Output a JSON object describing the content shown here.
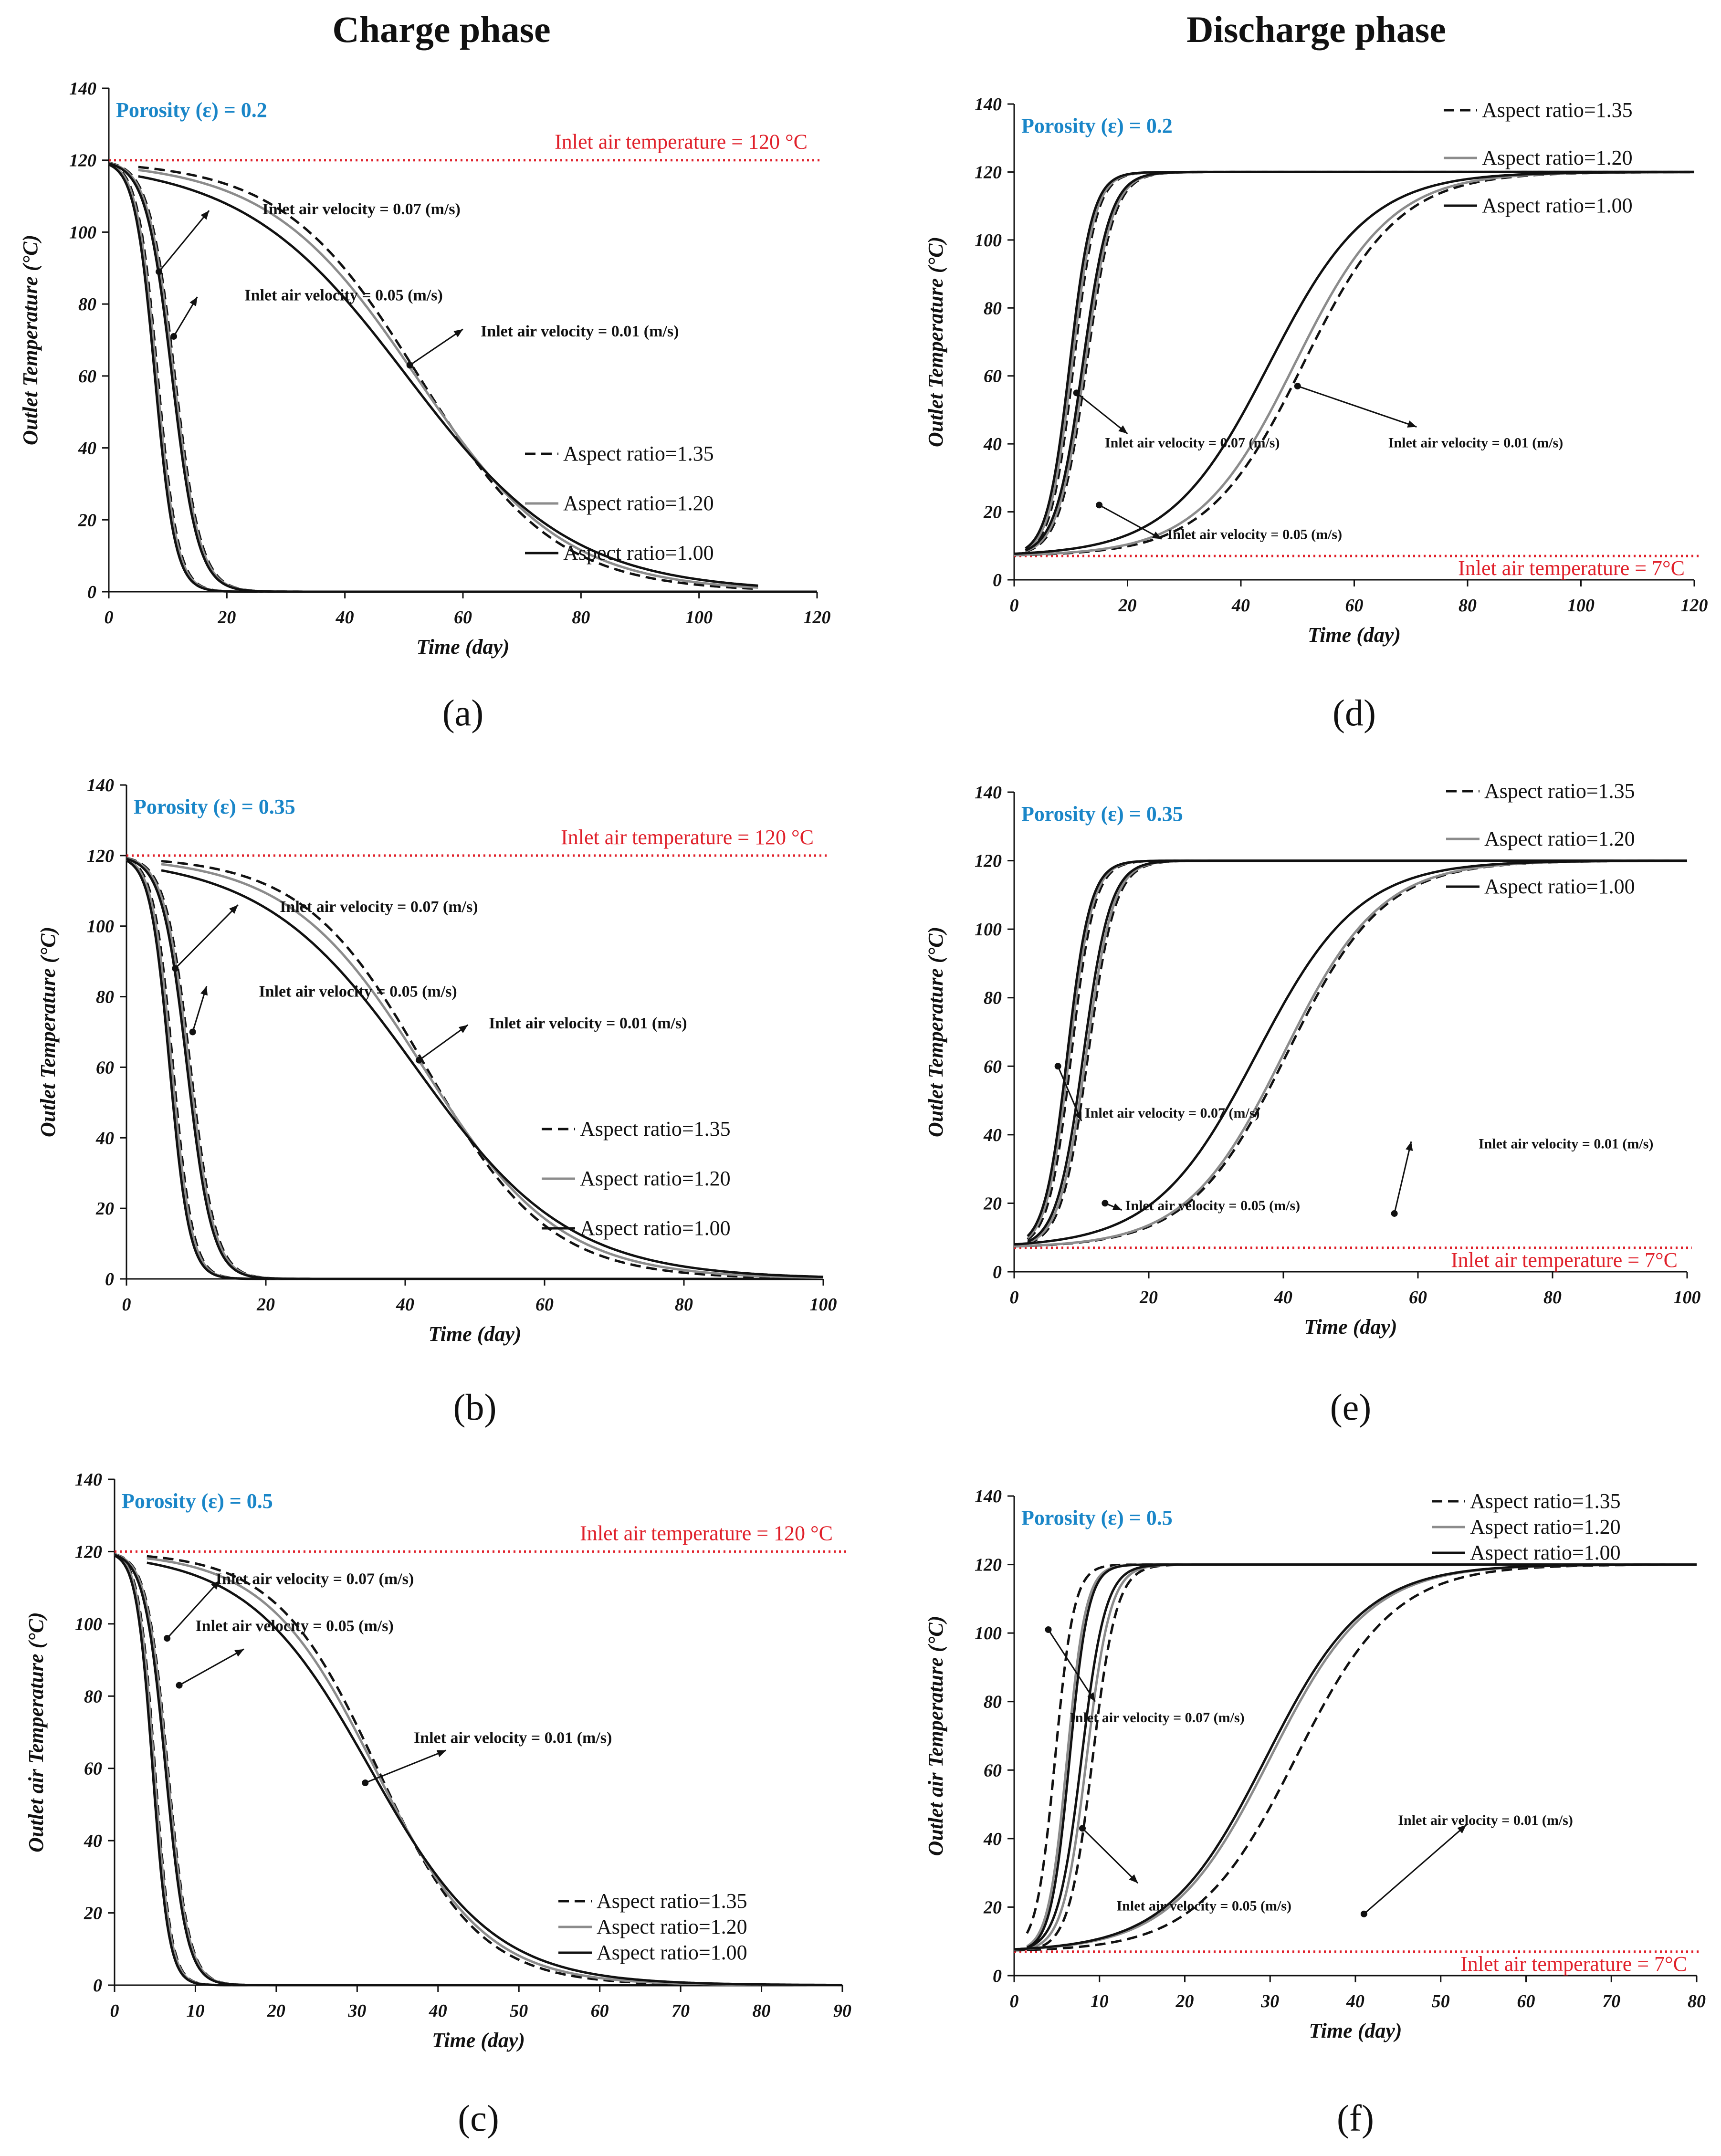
{
  "phase_titles": {
    "charge": "Charge phase",
    "discharge": "Discharge phase"
  },
  "colors": {
    "inlet_line": "#e0202a",
    "porosity_text": "#1a86c8",
    "gray_curve": "#8c8c8c",
    "black": "#111111"
  },
  "chart_data": [
    {
      "id": "a",
      "label": "(a)",
      "type": "line",
      "phase": "charge",
      "porosity": "Porosity (ε) = 0.2",
      "xlabel": "Time (day)",
      "ylabel": "Outlet Temperature (°C)",
      "xlim": [
        0,
        120
      ],
      "ylim": [
        0,
        140
      ],
      "xticks": [
        0,
        20,
        40,
        60,
        80,
        100,
        120
      ],
      "yticks": [
        0,
        20,
        40,
        60,
        80,
        100,
        120,
        140
      ],
      "inlet_temperature": {
        "value": 120,
        "text": "Inlet air temperature = 120 °C"
      },
      "legend_entries": [
        "Aspect ratio=1.35",
        "Aspect ratio=1.20",
        "Aspect ratio=1.00"
      ],
      "legend_position": "bottom-right",
      "series": [
        {
          "name": "0.07 m/s AR=1.35",
          "style": "dashed",
          "t0": 120,
          "t1": 0,
          "mid": 8.3,
          "width": 1.7,
          "start": 0
        },
        {
          "name": "0.07 m/s AR=1.20",
          "style": "gray",
          "t0": 120,
          "t1": 0,
          "mid": 8.1,
          "width": 1.7,
          "start": 0
        },
        {
          "name": "0.07 m/s AR=1.00",
          "style": "black",
          "t0": 120,
          "t1": 0,
          "mid": 7.8,
          "width": 1.7,
          "start": 0
        },
        {
          "name": "0.05 m/s AR=1.35",
          "style": "dashed",
          "t0": 120,
          "t1": 0,
          "mid": 11.2,
          "width": 2.2,
          "start": 0
        },
        {
          "name": "0.05 m/s AR=1.20",
          "style": "gray",
          "t0": 120,
          "t1": 0,
          "mid": 11.0,
          "width": 2.2,
          "start": 0
        },
        {
          "name": "0.05 m/s AR=1.00",
          "style": "black",
          "t0": 120,
          "t1": 0,
          "mid": 10.7,
          "width": 2.2,
          "start": 0
        },
        {
          "name": "0.01 m/s AR=1.35",
          "style": "dashed",
          "t0": 120,
          "t1": 0,
          "mid": 52.5,
          "width": 11.5,
          "start": 5,
          "end": 110
        },
        {
          "name": "0.01 m/s AR=1.20",
          "style": "gray",
          "t0": 120,
          "t1": 0,
          "mid": 52.0,
          "width": 12.5,
          "start": 5,
          "end": 110
        },
        {
          "name": "0.01 m/s AR=1.00",
          "style": "black",
          "t0": 120,
          "t1": 0,
          "mid": 50.5,
          "width": 14.0,
          "start": 5,
          "end": 110
        }
      ],
      "annotations": [
        {
          "text": "Inlet air velocity = 0.07 (m/s)",
          "x": 8.5,
          "y": 89,
          "tx": 26,
          "ty": 105,
          "lx": 17,
          "ly": 106
        },
        {
          "text": "Inlet air velocity = 0.05 (m/s)",
          "x": 11,
          "y": 71,
          "tx": 23,
          "ty": 81,
          "lx": 15,
          "ly": 82
        },
        {
          "text": "Inlet air velocity = 0.01 (m/s)",
          "x": 51,
          "y": 63,
          "tx": 63,
          "ty": 71,
          "lx": 60,
          "ly": 73
        }
      ]
    },
    {
      "id": "b",
      "label": "(b)",
      "type": "line",
      "phase": "charge",
      "porosity": "Porosity (ε) = 0.35",
      "xlabel": "Time (day)",
      "ylabel": "Outlet Temperature (°C)",
      "xlim": [
        0,
        100
      ],
      "ylim": [
        0,
        140
      ],
      "xticks": [
        0,
        20,
        40,
        60,
        80,
        100
      ],
      "yticks": [
        0,
        20,
        40,
        60,
        80,
        100,
        120,
        140
      ],
      "inlet_temperature": {
        "value": 120,
        "text": "Inlet air temperature = 120 °C"
      },
      "legend_entries": [
        "Aspect ratio=1.35",
        "Aspect ratio=1.20",
        "Aspect ratio=1.00"
      ],
      "legend_position": "bottom-right",
      "series": [
        {
          "name": "0.07 m/s AR=1.35",
          "style": "dashed",
          "t0": 120,
          "t1": 0,
          "mid": 6.7,
          "width": 1.4,
          "start": 0
        },
        {
          "name": "0.07 m/s AR=1.20",
          "style": "gray",
          "t0": 120,
          "t1": 0,
          "mid": 6.5,
          "width": 1.4,
          "start": 0
        },
        {
          "name": "0.07 m/s AR=1.00",
          "style": "black",
          "t0": 120,
          "t1": 0,
          "mid": 6.2,
          "width": 1.4,
          "start": 0
        },
        {
          "name": "0.05 m/s AR=1.35",
          "style": "dashed",
          "t0": 120,
          "t1": 0,
          "mid": 9.2,
          "width": 1.8,
          "start": 0
        },
        {
          "name": "0.05 m/s AR=1.20",
          "style": "gray",
          "t0": 120,
          "t1": 0,
          "mid": 9.0,
          "width": 1.8,
          "start": 0
        },
        {
          "name": "0.05 m/s AR=1.00",
          "style": "black",
          "t0": 120,
          "t1": 0,
          "mid": 8.7,
          "width": 1.8,
          "start": 0
        },
        {
          "name": "0.01 m/s AR=1.35",
          "style": "dashed",
          "t0": 120,
          "t1": 0,
          "mid": 43.0,
          "width": 8.8,
          "start": 5
        },
        {
          "name": "0.01 m/s AR=1.20",
          "style": "gray",
          "t0": 120,
          "t1": 0,
          "mid": 42.6,
          "width": 9.7,
          "start": 5
        },
        {
          "name": "0.01 m/s AR=1.00",
          "style": "black",
          "t0": 120,
          "t1": 0,
          "mid": 41.5,
          "width": 11.0,
          "start": 5
        }
      ],
      "annotations": [
        {
          "text": "Inlet air velocity = 0.07 (m/s)",
          "x": 7,
          "y": 88,
          "tx": 22,
          "ty": 104,
          "lx": 16,
          "ly": 106
        },
        {
          "text": "Inlet air velocity = 0.05 (m/s)",
          "x": 9.5,
          "y": 70,
          "tx": 19,
          "ty": 80,
          "lx": 11.5,
          "ly": 83
        },
        {
          "text": "Inlet air velocity = 0.01 (m/s)",
          "x": 42,
          "y": 62,
          "tx": 52,
          "ty": 71,
          "lx": 49,
          "ly": 72
        }
      ]
    },
    {
      "id": "c",
      "label": "(c)",
      "type": "line",
      "phase": "charge",
      "porosity": "Porosity (ε) = 0.5",
      "xlabel": "Time (day)",
      "ylabel": "Outlet air Temperature (°C)",
      "xlim": [
        0,
        90
      ],
      "ylim": [
        0,
        140
      ],
      "xticks": [
        0,
        10,
        20,
        30,
        40,
        50,
        60,
        70,
        80,
        90
      ],
      "yticks": [
        0,
        20,
        40,
        60,
        80,
        100,
        120,
        140
      ],
      "inlet_temperature": {
        "value": 120,
        "text": "Inlet air temperature = 120 °C"
      },
      "legend_entries": [
        "Aspect ratio=1.35",
        "Aspect ratio=1.20",
        "Aspect ratio=1.00"
      ],
      "legend_position": "bottom-right",
      "series": [
        {
          "name": "0.07 m/s AR=1.35",
          "style": "dashed",
          "t0": 120,
          "t1": 0,
          "mid": 5.0,
          "width": 1.0,
          "start": 0
        },
        {
          "name": "0.07 m/s AR=1.20",
          "style": "gray",
          "t0": 120,
          "t1": 0,
          "mid": 4.9,
          "width": 1.0,
          "start": 0
        },
        {
          "name": "0.07 m/s AR=1.00",
          "style": "black",
          "t0": 120,
          "t1": 0,
          "mid": 4.7,
          "width": 1.0,
          "start": 0
        },
        {
          "name": "0.05 m/s AR=1.35",
          "style": "dashed",
          "t0": 120,
          "t1": 0,
          "mid": 6.6,
          "width": 1.3,
          "start": 0
        },
        {
          "name": "0.05 m/s AR=1.20",
          "style": "gray",
          "t0": 120,
          "t1": 0,
          "mid": 6.5,
          "width": 1.3,
          "start": 0
        },
        {
          "name": "0.05 m/s AR=1.00",
          "style": "black",
          "t0": 120,
          "t1": 0,
          "mid": 6.3,
          "width": 1.3,
          "start": 0
        },
        {
          "name": "0.01 m/s AR=1.35",
          "style": "dashed",
          "t0": 120,
          "t1": 0,
          "mid": 32.5,
          "width": 6.3,
          "start": 4
        },
        {
          "name": "0.01 m/s AR=1.20",
          "style": "gray",
          "t0": 120,
          "t1": 0,
          "mid": 32.2,
          "width": 6.8,
          "start": 4
        },
        {
          "name": "0.01 m/s AR=1.00",
          "style": "black",
          "t0": 120,
          "t1": 0,
          "mid": 31.6,
          "width": 7.6,
          "start": 4
        }
      ],
      "annotations": [
        {
          "text": "Inlet air velocity = 0.07 (m/s)",
          "x": 6.5,
          "y": 96,
          "tx": 12.5,
          "ty": 111,
          "lx": 13,
          "ly": 112
        },
        {
          "text": "Inlet air velocity = 0.05 (m/s)",
          "x": 8,
          "y": 83,
          "tx": 10,
          "ty": 98,
          "lx": 16,
          "ly": 93
        },
        {
          "text": "Inlet air velocity = 0.01 (m/s)",
          "x": 31,
          "y": 56,
          "tx": 37,
          "ty": 67,
          "lx": 41,
          "ly": 65
        }
      ]
    },
    {
      "id": "d",
      "label": "(d)",
      "type": "line",
      "phase": "discharge",
      "porosity": "Porosity (ε) = 0.2",
      "xlabel": "Time (day)",
      "ylabel": "Outlet Temperature (°C)",
      "xlim": [
        0,
        120
      ],
      "ylim": [
        0,
        140
      ],
      "xticks": [
        0,
        20,
        40,
        60,
        80,
        100,
        120
      ],
      "yticks": [
        0,
        20,
        40,
        60,
        80,
        100,
        120,
        140
      ],
      "inlet_temperature": {
        "value": 7,
        "text": "Inlet air temperature = 7°C"
      },
      "legend_entries": [
        "Aspect ratio=1.35",
        "Aspect ratio=1.20",
        "Aspect ratio=1.00"
      ],
      "legend_position": "top-right",
      "series": [
        {
          "name": "0.07 m/s AR=1.35",
          "style": "dashed",
          "t0": 7,
          "t1": 120,
          "mid": 10.5,
          "width": 2.0,
          "start": 2
        },
        {
          "name": "0.07 m/s AR=1.20",
          "style": "gray",
          "t0": 7,
          "t1": 120,
          "mid": 10.2,
          "width": 2.0,
          "start": 2
        },
        {
          "name": "0.07 m/s AR=1.00",
          "style": "black",
          "t0": 7,
          "t1": 120,
          "mid": 9.8,
          "width": 2.0,
          "start": 2
        },
        {
          "name": "0.05 m/s AR=1.35",
          "style": "dashed",
          "t0": 7,
          "t1": 120,
          "mid": 12.8,
          "width": 2.4,
          "start": 2
        },
        {
          "name": "0.05 m/s AR=1.20",
          "style": "gray",
          "t0": 7,
          "t1": 120,
          "mid": 12.5,
          "width": 2.4,
          "start": 2
        },
        {
          "name": "0.05 m/s AR=1.00",
          "style": "black",
          "t0": 7,
          "t1": 120,
          "mid": 12.1,
          "width": 2.4,
          "start": 2
        },
        {
          "name": "0.01 m/s AR=1.35",
          "style": "dashed",
          "t0": 7,
          "t1": 120,
          "mid": 51.0,
          "width": 8.5,
          "start": 0
        },
        {
          "name": "0.01 m/s AR=1.20",
          "style": "gray",
          "t0": 7,
          "t1": 120,
          "mid": 49.5,
          "width": 8.5,
          "start": 0
        },
        {
          "name": "0.01 m/s AR=1.00",
          "style": "black",
          "t0": 7,
          "t1": 120,
          "mid": 45.0,
          "width": 8.8,
          "start": 0
        }
      ],
      "annotations": [
        {
          "text": "Inlet air velocity = 0.07 (m/s)",
          "x": 11,
          "y": 55,
          "tx": 16,
          "ty": 39,
          "lx": 20,
          "ly": 43
        },
        {
          "text": "Inlet air velocity = 0.05 (m/s)",
          "x": 15,
          "y": 22,
          "tx": 27,
          "ty": 12,
          "lx": 26,
          "ly": 12
        },
        {
          "text": "Inlet air velocity = 0.01 (m/s)",
          "x": 50,
          "y": 57,
          "tx": 66,
          "ty": 39,
          "lx": 71,
          "ly": 45
        }
      ]
    },
    {
      "id": "e",
      "label": "(e)",
      "type": "line",
      "phase": "discharge",
      "porosity": "Porosity (ε) = 0.35",
      "xlabel": "Time (day)",
      "ylabel": "Outlet Temperature (°C)",
      "xlim": [
        0,
        100
      ],
      "ylim": [
        0,
        140
      ],
      "xticks": [
        0,
        20,
        40,
        60,
        80,
        100
      ],
      "yticks": [
        0,
        20,
        40,
        60,
        80,
        100,
        120,
        140
      ],
      "inlet_temperature": {
        "value": 7,
        "text": "Inlet air temperature = 7°C"
      },
      "legend_entries": [
        "Aspect ratio=1.35",
        "Aspect ratio=1.20",
        "Aspect ratio=1.00"
      ],
      "legend_position": "top-right",
      "series": [
        {
          "name": "0.07 m/s AR=1.35",
          "style": "dashed",
          "t0": 7,
          "t1": 120,
          "mid": 8.5,
          "width": 1.7,
          "start": 2
        },
        {
          "name": "0.07 m/s AR=1.20",
          "style": "gray",
          "t0": 7,
          "t1": 120,
          "mid": 8.2,
          "width": 1.7,
          "start": 2
        },
        {
          "name": "0.07 m/s AR=1.00",
          "style": "black",
          "t0": 7,
          "t1": 120,
          "mid": 7.9,
          "width": 1.7,
          "start": 2
        },
        {
          "name": "0.05 m/s AR=1.35",
          "style": "dashed",
          "t0": 7,
          "t1": 120,
          "mid": 11.0,
          "width": 2.0,
          "start": 2
        },
        {
          "name": "0.05 m/s AR=1.20",
          "style": "gray",
          "t0": 7,
          "t1": 120,
          "mid": 10.7,
          "width": 2.0,
          "start": 2
        },
        {
          "name": "0.05 m/s AR=1.00",
          "style": "black",
          "t0": 7,
          "t1": 120,
          "mid": 10.3,
          "width": 2.0,
          "start": 2
        },
        {
          "name": "0.01 m/s AR=1.35",
          "style": "dashed",
          "t0": 7,
          "t1": 120,
          "mid": 40.5,
          "width": 7.2,
          "start": 0
        },
        {
          "name": "0.01 m/s AR=1.20",
          "style": "gray",
          "t0": 7,
          "t1": 120,
          "mid": 40.0,
          "width": 7.2,
          "start": 0
        },
        {
          "name": "0.01 m/s AR=1.00",
          "style": "black",
          "t0": 7,
          "t1": 120,
          "mid": 36.0,
          "width": 7.6,
          "start": 0
        }
      ],
      "annotations": [
        {
          "text": "Inlet air velocity = 0.07 (m/s)",
          "x": 6.5,
          "y": 60,
          "tx": 10.5,
          "ty": 45,
          "lx": 10,
          "ly": 44
        },
        {
          "text": "Inlet air velocity = 0.05 (m/s)",
          "x": 13.5,
          "y": 20,
          "tx": 16.5,
          "ty": 18,
          "lx": 16,
          "ly": 18
        },
        {
          "text": "Inlet air velocity = 0.01 (m/s)",
          "x": 56.5,
          "y": 17,
          "tx": 69,
          "ty": 36,
          "lx": 59,
          "ly": 38
        }
      ]
    },
    {
      "id": "f",
      "label": "(f)",
      "type": "line",
      "phase": "discharge",
      "porosity": "Porosity (ε) = 0.5",
      "xlabel": "Time (day)",
      "ylabel": "Outlet air Temperature (°C)",
      "xlim": [
        0,
        80
      ],
      "ylim": [
        0,
        140
      ],
      "xticks": [
        0,
        10,
        20,
        30,
        40,
        50,
        60,
        70,
        80
      ],
      "yticks": [
        0,
        20,
        40,
        60,
        80,
        100,
        120,
        140
      ],
      "inlet_temperature": {
        "value": 7,
        "text": "Inlet air temperature = 7°C"
      },
      "legend_entries": [
        "Aspect ratio=1.35",
        "Aspect ratio=1.20",
        "Aspect ratio=1.00"
      ],
      "legend_position": "top-right",
      "series": [
        {
          "name": "0.07 m/s AR=1.35",
          "style": "dashed",
          "t0": 7,
          "t1": 120,
          "mid": 4.8,
          "width": 1.1,
          "start": 1.5
        },
        {
          "name": "0.07 m/s AR=1.20",
          "style": "gray",
          "t0": 7,
          "t1": 120,
          "mid": 6.2,
          "width": 1.1,
          "start": 1.5
        },
        {
          "name": "0.07 m/s AR=1.00",
          "style": "black",
          "t0": 7,
          "t1": 120,
          "mid": 6.5,
          "width": 1.1,
          "start": 1.5
        },
        {
          "name": "0.05 m/s AR=1.35",
          "style": "dashed",
          "t0": 7,
          "t1": 120,
          "mid": 9.2,
          "width": 1.4,
          "start": 1.5
        },
        {
          "name": "0.05 m/s AR=1.20",
          "style": "gray",
          "t0": 7,
          "t1": 120,
          "mid": 8.5,
          "width": 1.4,
          "start": 1.5
        },
        {
          "name": "0.05 m/s AR=1.00",
          "style": "black",
          "t0": 7,
          "t1": 120,
          "mid": 7.9,
          "width": 1.4,
          "start": 1.5
        },
        {
          "name": "0.01 m/s AR=1.35",
          "style": "dashed",
          "t0": 7,
          "t1": 120,
          "mid": 33.0,
          "width": 5.8,
          "start": 0
        },
        {
          "name": "0.01 m/s AR=1.20",
          "style": "gray",
          "t0": 7,
          "t1": 120,
          "mid": 30.0,
          "width": 5.8,
          "start": 0
        },
        {
          "name": "0.01 m/s AR=1.00",
          "style": "black",
          "t0": 7,
          "t1": 120,
          "mid": 29.5,
          "width": 5.8,
          "start": 0
        }
      ],
      "annotations": [
        {
          "text": "Inlet air velocity = 0.07 (m/s)",
          "x": 4,
          "y": 101,
          "tx": 6.5,
          "ty": 74,
          "lx": 9.5,
          "ly": 80
        },
        {
          "text": "Inlet air velocity = 0.05 (m/s)",
          "x": 8,
          "y": 43,
          "tx": 12,
          "ty": 19,
          "lx": 14.5,
          "ly": 27
        },
        {
          "text": "Inlet air velocity = 0.01 (m/s)",
          "x": 41,
          "y": 18,
          "tx": 45,
          "ty": 44,
          "lx": 53,
          "ly": 44
        }
      ]
    }
  ]
}
